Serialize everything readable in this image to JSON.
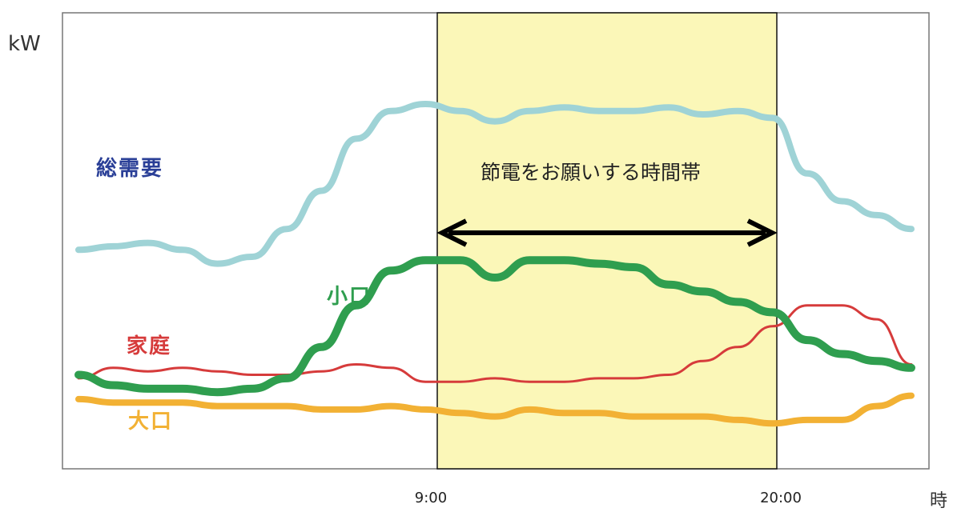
{
  "chart_data": {
    "type": "line",
    "ylabel": "kW",
    "xlabel": "時",
    "x_ticks": [
      "9:00",
      "20:00"
    ],
    "highlight": {
      "from": "9:00",
      "to": "20:00",
      "label": "節電をお願いする時間帯",
      "color": "#fbf7b8"
    },
    "series": [
      {
        "name": "総需要",
        "color": "#9fd3d6",
        "values": [
          58,
          59,
          60,
          58,
          54,
          56,
          64,
          75,
          90,
          98,
          100,
          98,
          95,
          98,
          99,
          98,
          98,
          99,
          97,
          98,
          96,
          80,
          72,
          68,
          64
        ]
      },
      {
        "name": "小口",
        "color": "#2f9e4f",
        "values": [
          22,
          19,
          18,
          18,
          17,
          18,
          21,
          30,
          42,
          52,
          55,
          55,
          50,
          55,
          55,
          54,
          53,
          48,
          46,
          43,
          40,
          32,
          28,
          26,
          24
        ]
      },
      {
        "name": "家庭",
        "color": "#d63b3b",
        "values": [
          21,
          24,
          23,
          24,
          23,
          22,
          22,
          23,
          25,
          24,
          20,
          20,
          21,
          20,
          20,
          21,
          21,
          22,
          26,
          30,
          36,
          42,
          42,
          38,
          25
        ]
      },
      {
        "name": "大口",
        "color": "#f2b134",
        "values": [
          15,
          14,
          14,
          14,
          13,
          13,
          13,
          12,
          12,
          13,
          12,
          11,
          10,
          12,
          11,
          11,
          10,
          10,
          10,
          9,
          8,
          9,
          9,
          13,
          16
        ]
      }
    ]
  }
}
